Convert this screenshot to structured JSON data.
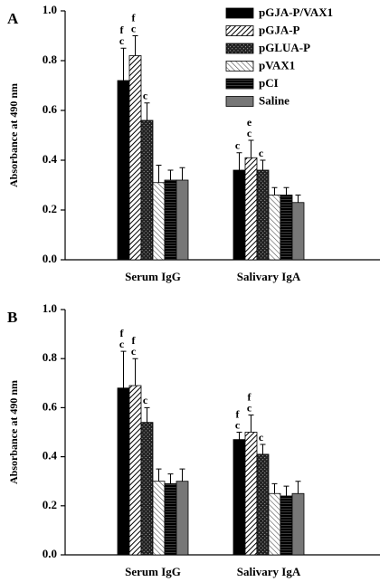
{
  "chart_data": [
    {
      "type": "bar",
      "panel": "A",
      "ylabel": "Absorbance at 490 nm",
      "legend": "top-right",
      "categories": [
        "Serum IgG",
        "Salivary IgA"
      ],
      "ylim": [
        0,
        1
      ],
      "yticks": [
        {
          "value": 0,
          "label": "0.0"
        },
        0.2,
        0.4,
        0.6,
        0.8,
        {
          "value": 1,
          "label": "1.0"
        }
      ],
      "series": [
        {
          "name": "pGJA-P/VAX1",
          "color": "#000000",
          "pattern": "solid",
          "values": [
            0.72,
            0.36
          ],
          "errors": [
            0.13,
            0.07
          ],
          "letters": [
            [
              "c",
              "f"
            ],
            [
              "c"
            ]
          ]
        },
        {
          "name": "pGJA-P",
          "color": "#ffffff",
          "pattern": "diagonal",
          "values": [
            0.82,
            0.41
          ],
          "errors": [
            0.08,
            0.07
          ],
          "letters": [
            [
              "c",
              "f"
            ],
            [
              "c",
              "e"
            ]
          ]
        },
        {
          "name": "pGLUA-P",
          "color": "#222222",
          "pattern": "cross",
          "values": [
            0.56,
            0.36
          ],
          "errors": [
            0.07,
            0.04
          ],
          "letters": [
            [
              "c"
            ],
            [
              "c"
            ]
          ]
        },
        {
          "name": "pVAX1",
          "color": "#ffffff",
          "pattern": "light-diagonal",
          "values": [
            0.31,
            0.26
          ],
          "errors": [
            0.07,
            0.03
          ],
          "letters": [
            [],
            []
          ]
        },
        {
          "name": "pCI",
          "color": "#000000",
          "pattern": "horizontal",
          "values": [
            0.32,
            0.26
          ],
          "errors": [
            0.04,
            0.03
          ],
          "letters": [
            [],
            []
          ]
        },
        {
          "name": "Saline",
          "color": "#777777",
          "pattern": "solid",
          "values": [
            0.32,
            0.23
          ],
          "errors": [
            0.05,
            0.03
          ],
          "letters": [
            [],
            []
          ]
        }
      ]
    },
    {
      "type": "bar",
      "panel": "B",
      "ylabel": "Absorbance at 490 nm",
      "categories": [
        "Serum IgG",
        "Salivary IgA"
      ],
      "ylim": [
        0,
        1
      ],
      "yticks": [
        {
          "value": 0,
          "label": "0.0"
        },
        0.2,
        0.4,
        0.6,
        0.8,
        {
          "value": 1,
          "label": "1.0"
        }
      ],
      "series": [
        {
          "color": "#000000",
          "pattern": "solid",
          "values": [
            0.68,
            0.47
          ],
          "errors": [
            0.15,
            0.03
          ],
          "letters": [
            [
              "c",
              "f"
            ],
            [
              "c",
              "f"
            ]
          ]
        },
        {
          "color": "#ffffff",
          "pattern": "diagonal",
          "values": [
            0.69,
            0.5
          ],
          "errors": [
            0.11,
            0.07
          ],
          "letters": [
            [
              "c",
              "f"
            ],
            [
              "c",
              "f"
            ]
          ]
        },
        {
          "color": "#222222",
          "pattern": "cross",
          "values": [
            0.54,
            0.41
          ],
          "errors": [
            0.06,
            0.04
          ],
          "letters": [
            [
              "c"
            ],
            [
              "c"
            ]
          ]
        },
        {
          "color": "#ffffff",
          "pattern": "light-diagonal",
          "values": [
            0.3,
            0.25
          ],
          "errors": [
            0.05,
            0.04
          ],
          "letters": [
            [],
            []
          ]
        },
        {
          "color": "#000000",
          "pattern": "horizontal",
          "values": [
            0.29,
            0.24
          ],
          "errors": [
            0.04,
            0.04
          ],
          "letters": [
            [],
            []
          ]
        },
        {
          "color": "#777777",
          "pattern": "solid",
          "values": [
            0.3,
            0.25
          ],
          "errors": [
            0.05,
            0.05
          ],
          "letters": [
            [],
            []
          ]
        }
      ]
    }
  ]
}
